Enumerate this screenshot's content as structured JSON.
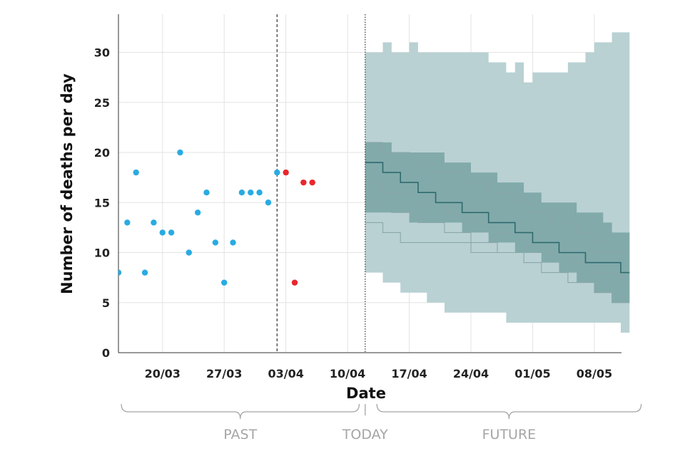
{
  "chart_data": {
    "type": "scatter",
    "xlabel": "Date",
    "ylabel": "Number of deaths per day",
    "xlim": [
      "2020-03-15",
      "2020-05-13"
    ],
    "ylim": [
      0,
      33
    ],
    "y_ticks": [
      0,
      5,
      10,
      15,
      20,
      25,
      30
    ],
    "x_ticks": [
      {
        "date": "2020-03-20",
        "label": "20/03"
      },
      {
        "date": "2020-03-27",
        "label": "27/03"
      },
      {
        "date": "2020-04-03",
        "label": "03/04"
      },
      {
        "date": "2020-04-10",
        "label": "10/04"
      },
      {
        "date": "2020-04-17",
        "label": "17/04"
      },
      {
        "date": "2020-04-24",
        "label": "24/04"
      },
      {
        "date": "2020-05-01",
        "label": "01/05"
      },
      {
        "date": "2020-05-08",
        "label": "08/05"
      }
    ],
    "grid": true,
    "colors": {
      "observed": "#29abe2",
      "recent": "#e8272d",
      "band_outer": "#b9d1d3",
      "band_inner": "#82aaab",
      "line_main": "#2e6b6e",
      "line_other": "#8aa7a8"
    },
    "series": [
      {
        "kind": "observed_points",
        "color": "#29abe2",
        "points": [
          [
            "2020-03-15",
            8
          ],
          [
            "2020-03-16",
            13
          ],
          [
            "2020-03-17",
            18
          ],
          [
            "2020-03-18",
            8
          ],
          [
            "2020-03-19",
            13
          ],
          [
            "2020-03-20",
            12
          ],
          [
            "2020-03-21",
            12
          ],
          [
            "2020-03-22",
            20
          ],
          [
            "2020-03-23",
            10
          ],
          [
            "2020-03-24",
            14
          ],
          [
            "2020-03-25",
            16
          ],
          [
            "2020-03-26",
            11
          ],
          [
            "2020-03-27",
            7
          ],
          [
            "2020-03-28",
            11
          ],
          [
            "2020-03-29",
            16
          ],
          [
            "2020-03-30",
            16
          ],
          [
            "2020-03-31",
            16
          ],
          [
            "2020-04-01",
            15
          ],
          [
            "2020-04-02",
            18
          ]
        ]
      },
      {
        "kind": "recent_points",
        "color": "#e8272d",
        "points": [
          [
            "2020-04-03",
            18
          ],
          [
            "2020-04-04",
            7
          ],
          [
            "2020-04-05",
            17
          ],
          [
            "2020-04-06",
            17
          ]
        ]
      },
      {
        "kind": "forecast_outer_band",
        "x": [
          "2020-04-12",
          "2020-04-13",
          "2020-04-14",
          "2020-04-15",
          "2020-04-16",
          "2020-04-17",
          "2020-04-18",
          "2020-04-19",
          "2020-04-20",
          "2020-04-21",
          "2020-04-22",
          "2020-04-23",
          "2020-04-24",
          "2020-04-25",
          "2020-04-26",
          "2020-04-27",
          "2020-04-28",
          "2020-04-29",
          "2020-04-30",
          "2020-05-01",
          "2020-05-02",
          "2020-05-03",
          "2020-05-04",
          "2020-05-05",
          "2020-05-06",
          "2020-05-07",
          "2020-05-08",
          "2020-05-09",
          "2020-05-10",
          "2020-05-11"
        ],
        "upper": [
          30,
          30,
          31,
          30,
          30,
          31,
          30,
          30,
          30,
          30,
          30,
          30,
          30,
          30,
          29,
          29,
          28,
          29,
          27,
          28,
          28,
          28,
          28,
          29,
          29,
          30,
          31,
          31,
          32,
          32
        ],
        "lower": [
          8,
          8,
          7,
          7,
          6,
          6,
          6,
          5,
          5,
          4,
          4,
          4,
          4,
          4,
          4,
          4,
          3,
          3,
          3,
          3,
          3,
          3,
          3,
          3,
          3,
          3,
          3,
          3,
          3,
          2
        ]
      },
      {
        "kind": "forecast_inner_band",
        "x": [
          "2020-04-12",
          "2020-04-13",
          "2020-04-14",
          "2020-04-15",
          "2020-04-16",
          "2020-04-17",
          "2020-04-18",
          "2020-04-19",
          "2020-04-20",
          "2020-04-21",
          "2020-04-22",
          "2020-04-23",
          "2020-04-24",
          "2020-04-25",
          "2020-04-26",
          "2020-04-27",
          "2020-04-28",
          "2020-04-29",
          "2020-04-30",
          "2020-05-01",
          "2020-05-02",
          "2020-05-03",
          "2020-05-04",
          "2020-05-05",
          "2020-05-06",
          "2020-05-07",
          "2020-05-08",
          "2020-05-09",
          "2020-05-10",
          "2020-05-11"
        ],
        "upper": [
          21,
          21,
          21,
          20,
          20,
          20,
          20,
          20,
          20,
          19,
          19,
          19,
          18,
          18,
          18,
          17,
          17,
          17,
          16,
          16,
          15,
          15,
          15,
          15,
          14,
          14,
          14,
          13,
          12,
          12
        ],
        "lower": [
          14,
          14,
          14,
          14,
          14,
          13,
          13,
          13,
          13,
          13,
          13,
          12,
          12,
          12,
          11,
          11,
          11,
          10,
          10,
          10,
          9,
          9,
          8,
          8,
          7,
          7,
          6,
          6,
          5,
          5
        ]
      },
      {
        "kind": "forecast_lines",
        "x": [
          "2020-04-12",
          "2020-04-13",
          "2020-04-14",
          "2020-04-15",
          "2020-04-16",
          "2020-04-17",
          "2020-04-18",
          "2020-04-19",
          "2020-04-20",
          "2020-04-21",
          "2020-04-22",
          "2020-04-23",
          "2020-04-24",
          "2020-04-25",
          "2020-04-26",
          "2020-04-27",
          "2020-04-28",
          "2020-04-29",
          "2020-04-30",
          "2020-05-01",
          "2020-05-02",
          "2020-05-03",
          "2020-05-04",
          "2020-05-05",
          "2020-05-06",
          "2020-05-07",
          "2020-05-08",
          "2020-05-09",
          "2020-05-10",
          "2020-05-11"
        ],
        "lines": [
          {
            "role": "main",
            "values": [
              19,
              19,
              18,
              18,
              17,
              17,
              16,
              16,
              15,
              15,
              15,
              14,
              14,
              14,
              13,
              13,
              13,
              12,
              12,
              11,
              11,
              11,
              10,
              10,
              10,
              9,
              9,
              9,
              9,
              8
            ]
          },
          {
            "role": "other",
            "values": [
              21,
              21,
              20,
              20,
              20,
              19,
              19,
              19,
              18,
              18,
              18,
              17,
              17,
              17,
              16,
              16,
              16,
              15,
              15,
              14,
              14,
              13,
              13,
              13,
              12,
              12,
              11,
              11,
              10,
              10
            ]
          },
          {
            "role": "other",
            "values": [
              17,
              17,
              16,
              16,
              16,
              15,
              15,
              15,
              15,
              14,
              14,
              14,
              13,
              13,
              13,
              12,
              12,
              12,
              11,
              11,
              10,
              10,
              10,
              9,
              9,
              9,
              8,
              8,
              8,
              7
            ]
          },
          {
            "role": "other",
            "values": [
              15,
              15,
              15,
              14,
              14,
              14,
              13,
              13,
              13,
              12,
              12,
              12,
              11,
              11,
              11,
              10,
              10,
              10,
              9,
              9,
              8,
              8,
              8,
              7,
              7,
              7,
              6,
              6,
              5,
              5
            ]
          },
          {
            "role": "other",
            "values": [
              13,
              13,
              12,
              12,
              11,
              11,
              11,
              11,
              11,
              11,
              11,
              11,
              10,
              10,
              10,
              10,
              10,
              10,
              10,
              10,
              10,
              10,
              10,
              10,
              10,
              10,
              10,
              10,
              10,
              10
            ]
          }
        ]
      }
    ],
    "reference_lines": [
      {
        "date": "2020-04-02",
        "style": "dashed"
      },
      {
        "date": "2020-04-12",
        "style": "dotted"
      }
    ],
    "periods": [
      {
        "label": "PAST",
        "from": "2020-03-15",
        "to": "2020-04-11"
      },
      {
        "label": "TODAY",
        "at": "2020-04-12"
      },
      {
        "label": "FUTURE",
        "from": "2020-04-13",
        "to": "2020-05-13"
      }
    ]
  }
}
